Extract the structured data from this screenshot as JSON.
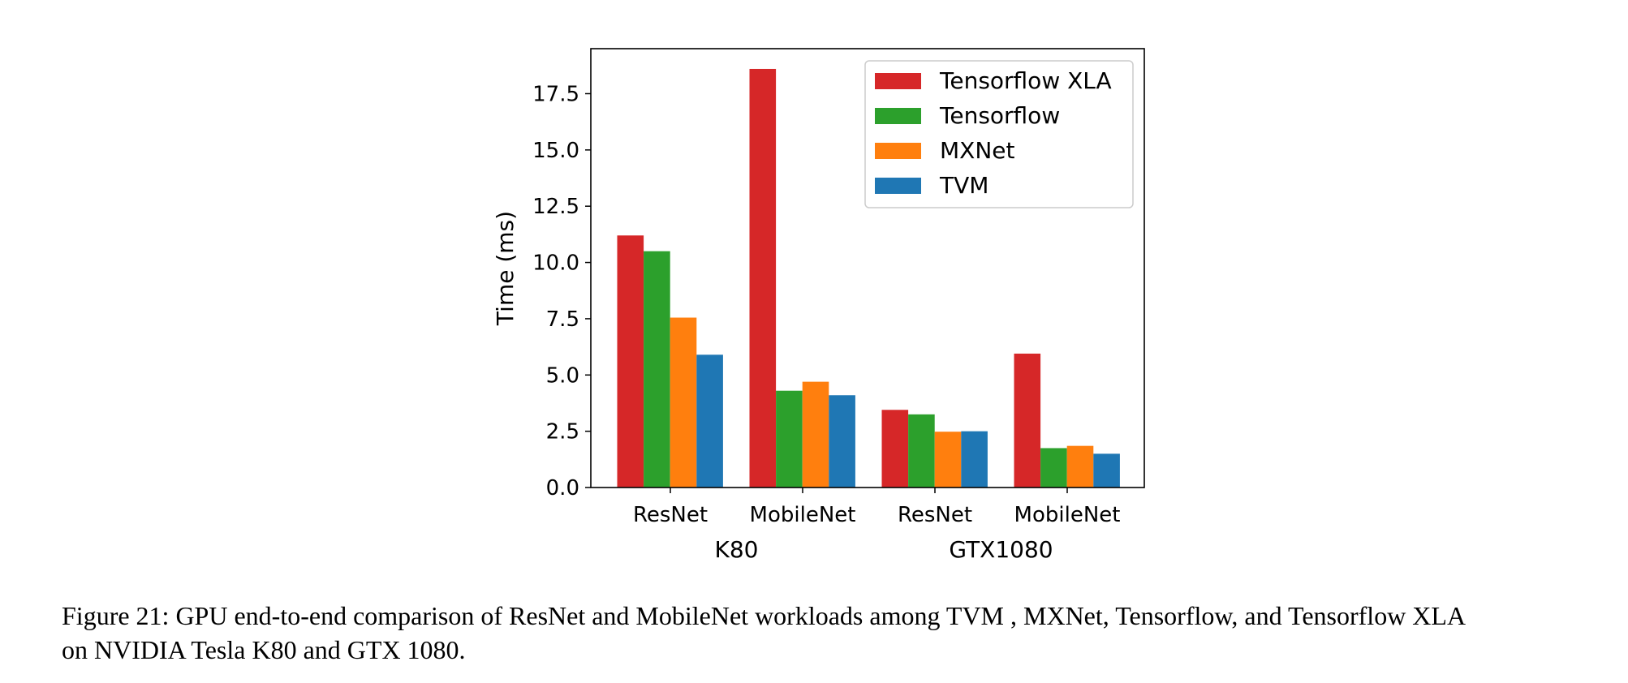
{
  "chart_data": {
    "type": "bar",
    "groups": [
      {
        "label": "K80",
        "categories": [
          "ResNet",
          "MobileNet"
        ]
      },
      {
        "label": "GTX1080",
        "categories": [
          "ResNet",
          "MobileNet"
        ]
      }
    ],
    "categories": [
      "ResNet",
      "MobileNet",
      "ResNet",
      "MobileNet"
    ],
    "series": [
      {
        "name": "Tensorflow XLA",
        "color": "#d62728",
        "values": [
          11.2,
          18.6,
          3.45,
          5.95
        ]
      },
      {
        "name": "Tensorflow",
        "color": "#2ca02c",
        "values": [
          10.5,
          4.3,
          3.25,
          1.75
        ]
      },
      {
        "name": "MXNet",
        "color": "#ff7f0e",
        "values": [
          7.55,
          4.7,
          2.48,
          1.85
        ]
      },
      {
        "name": "TVM",
        "color": "#1f77b4",
        "values": [
          5.9,
          4.1,
          2.5,
          1.5
        ]
      }
    ],
    "title": "",
    "xlabel": "",
    "ylabel": "Time (ms)",
    "ylim": [
      0,
      19.5
    ],
    "yticks": [
      "0.0",
      "2.5",
      "5.0",
      "7.5",
      "10.0",
      "12.5",
      "15.0",
      "17.5"
    ],
    "legend_position": "top-right",
    "grid": false
  },
  "caption": {
    "line1": "Figure 21: GPU end-to-end comparison of ResNet and MobileNet workloads among TVM , MXNet, Tensorflow, and Tensorflow XLA",
    "line2": "on NVIDIA Tesla K80 and GTX 1080."
  }
}
